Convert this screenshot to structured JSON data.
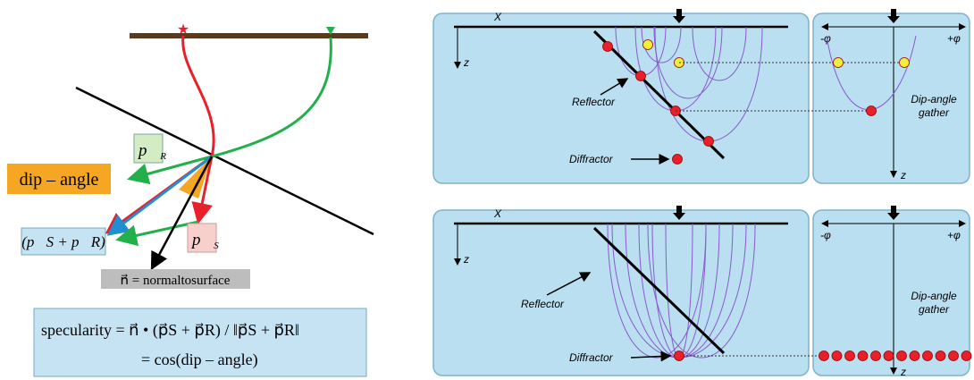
{
  "left": {
    "dip_angle": "dip – angle",
    "p_r": {
      "symbol": "p⃗",
      "sub": "R"
    },
    "p_s": {
      "symbol": "p⃗",
      "sub": "S"
    },
    "sum": "(p⃗S + p⃗R)",
    "normal": "n⃗ = normaltosurface",
    "formula_line1": "specularity = n⃗ • (p⃗S + p⃗R) / ‖p⃗S + p⃗R‖",
    "formula_line2": "= cos(dip – angle)"
  },
  "top": {
    "x_label": "X",
    "z_label": "z",
    "reflector": "Reflector",
    "diffractor": "Diffractor",
    "gather": {
      "minus": "-φ",
      "plus": "+φ",
      "title_line1": "Dip-angle",
      "title_line2": "gather",
      "z_label": "z"
    }
  },
  "bottom": {
    "x_label": "X",
    "z_label": "z",
    "reflector": "Reflector",
    "diffractor": "Diffractor",
    "gather": {
      "minus": "-φ",
      "plus": "+φ",
      "title_line1": "Dip-angle",
      "title_line2": "gather",
      "z_label": "z"
    }
  }
}
